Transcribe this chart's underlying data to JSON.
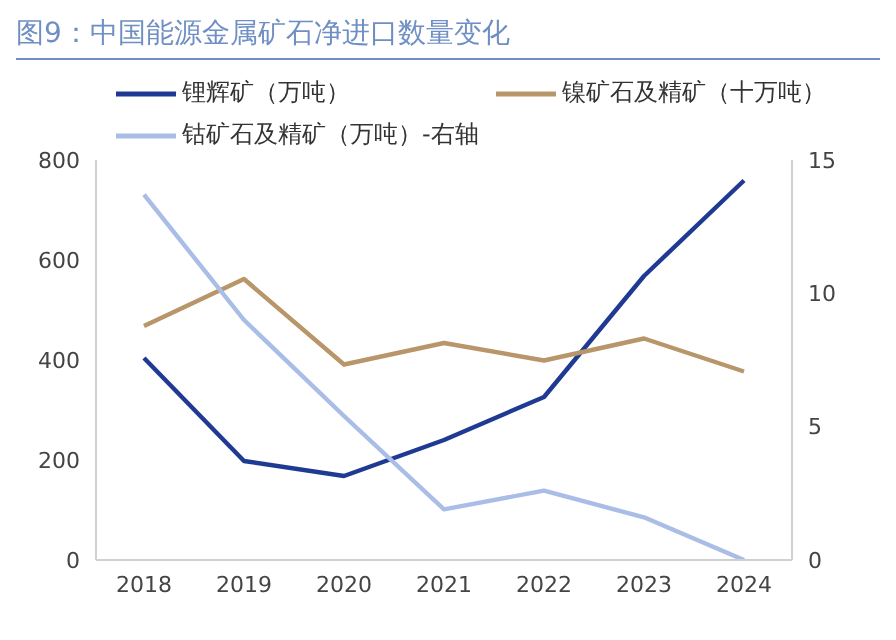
{
  "chart_data": {
    "type": "line",
    "title": "图9：中国能源金属矿石净进口数量变化",
    "categories": [
      "2018",
      "2019",
      "2020",
      "2021",
      "2022",
      "2023",
      "2024"
    ],
    "series": [
      {
        "name": "锂辉矿（万吨）",
        "color": "#1f3a93",
        "values": [
          404,
          198,
          168,
          240,
          326,
          568,
          759
        ]
      },
      {
        "name": "镍矿石及精矿（十万吨）",
        "color": "#b8966a",
        "values": [
          468,
          562,
          391,
          434,
          399,
          443,
          377
        ]
      },
      {
        "name": "钴矿石及精矿（万吨）-右轴",
        "color": "#a9bde6",
        "axis": "y2",
        "values": [
          13.7,
          9.0,
          5.4,
          1.9,
          2.6,
          1.6,
          0.0
        ]
      }
    ],
    "ylim": [
      0,
      800
    ],
    "yticks": [
      0,
      200,
      400,
      600,
      800
    ],
    "y2lim": [
      0,
      15
    ],
    "y2ticks": [
      0,
      5,
      10,
      15
    ],
    "legend": "top",
    "marker": "none",
    "line_style": "solid"
  }
}
